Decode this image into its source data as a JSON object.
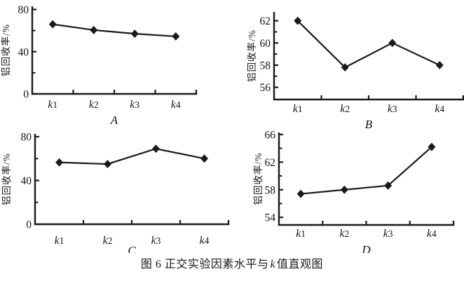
{
  "figure": {
    "caption": {
      "prefix": "图 6  正交实验因素水平与",
      "italic": "k",
      "suffix": "值直观图"
    },
    "background_color": "#ffffff",
    "line_color": "#1a1a1a"
  },
  "chart_data": [
    {
      "id": "A",
      "type": "line",
      "title": "A",
      "categories": [
        "k1",
        "k2",
        "k3",
        "k4"
      ],
      "values": [
        66,
        60.5,
        57,
        54.5
      ],
      "xlabel": "A",
      "ylabel": "铝回收率/%",
      "yticks": [
        0,
        40,
        80
      ],
      "yticks_minor": [
        20,
        60
      ],
      "ylim": [
        0,
        83
      ],
      "marker": "diamond",
      "grid": false,
      "legend": "none"
    },
    {
      "id": "B",
      "type": "line",
      "title": "B",
      "categories": [
        "k1",
        "k2",
        "k3",
        "k4"
      ],
      "values": [
        62,
        57.8,
        60,
        58
      ],
      "xlabel": "B",
      "ylabel": "铝回收率/%",
      "yticks": [
        56,
        58,
        60,
        62
      ],
      "yticks_minor": [
        57,
        59,
        61
      ],
      "ylim": [
        54.9,
        62.8
      ],
      "marker": "diamond",
      "grid": false,
      "legend": "none"
    },
    {
      "id": "C",
      "type": "line",
      "title": "C",
      "categories": [
        "k1",
        "k2",
        "k3",
        "k4"
      ],
      "values": [
        56.5,
        55,
        69,
        60
      ],
      "xlabel": "C",
      "ylabel": "铝回收率/%",
      "yticks": [
        0,
        40,
        80
      ],
      "yticks_minor": [
        20,
        60
      ],
      "ylim": [
        0,
        82.6
      ],
      "marker": "diamond",
      "grid": false,
      "legend": "none"
    },
    {
      "id": "D",
      "type": "line",
      "title": "D",
      "categories": [
        "k1",
        "k2",
        "k3",
        "k4"
      ],
      "values": [
        57.4,
        58,
        58.6,
        64.2
      ],
      "xlabel": "D",
      "ylabel": "铝回收率/%",
      "yticks": [
        54,
        58,
        62,
        66
      ],
      "yticks_minor": [
        56,
        60,
        64
      ],
      "ylim": [
        52.9,
        66.3
      ],
      "marker": "diamond",
      "grid": false,
      "legend": "none"
    }
  ]
}
